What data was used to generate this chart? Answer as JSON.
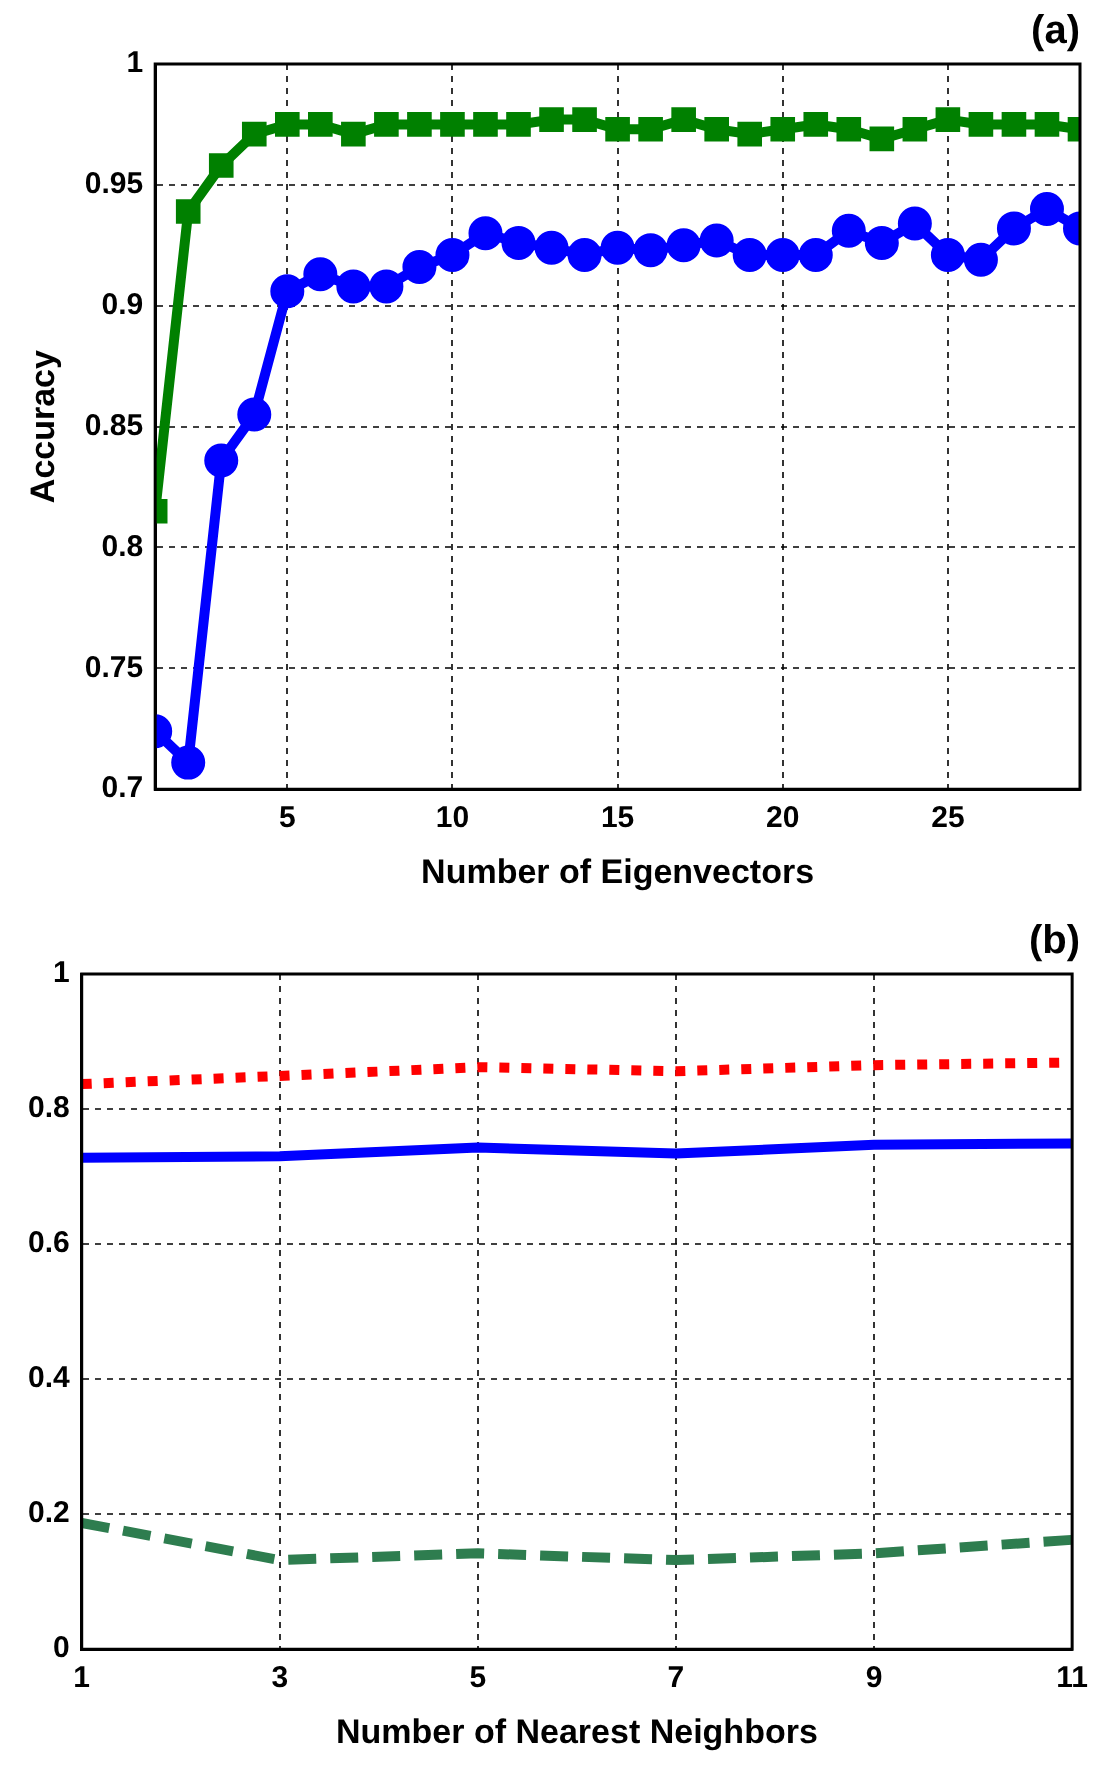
{
  "chart_data": [
    {
      "type": "line",
      "title": "(a)",
      "xlabel": "Number of Eigenvectors",
      "ylabel": "Accuracy",
      "x": [
        1,
        2,
        3,
        4,
        5,
        6,
        7,
        8,
        9,
        10,
        11,
        12,
        13,
        14,
        15,
        16,
        17,
        18,
        19,
        20,
        21,
        22,
        23,
        24,
        25,
        26,
        27,
        28,
        29
      ],
      "xlim": [
        1,
        29
      ],
      "xticks": [
        5,
        10,
        15,
        20,
        25
      ],
      "ylim": [
        0.7,
        1
      ],
      "yticks": [
        0.7,
        0.75,
        0.8,
        0.85,
        0.9,
        0.95,
        1
      ],
      "grid": true,
      "legend": false,
      "line_style": "solid",
      "series": [
        {
          "color": "#008000",
          "marker": "square",
          "values": [
            0.815,
            0.939,
            0.958,
            0.971,
            0.975,
            0.975,
            0.971,
            0.975,
            0.975,
            0.975,
            0.975,
            0.975,
            0.977,
            0.977,
            0.973,
            0.973,
            0.977,
            0.973,
            0.971,
            0.973,
            0.975,
            0.973,
            0.969,
            0.973,
            0.977,
            0.975,
            0.975,
            0.975,
            0.973
          ]
        },
        {
          "color": "#0000ff",
          "marker": "circle",
          "values": [
            0.724,
            0.711,
            0.836,
            0.855,
            0.906,
            0.913,
            0.908,
            0.908,
            0.916,
            0.921,
            0.93,
            0.926,
            0.924,
            0.921,
            0.924,
            0.923,
            0.925,
            0.927,
            0.921,
            0.921,
            0.921,
            0.931,
            0.926,
            0.934,
            0.921,
            0.919,
            0.932,
            0.94,
            0.932
          ]
        }
      ]
    },
    {
      "type": "line",
      "title": "(b)",
      "xlabel": "Number of Nearest Neighbors",
      "x": [
        1,
        3,
        5,
        7,
        9,
        11
      ],
      "xlim": [
        1,
        11
      ],
      "xticks": [
        1,
        3,
        5,
        7,
        9,
        11
      ],
      "ylim": [
        0,
        1
      ],
      "yticks": [
        0,
        0.2,
        0.4,
        0.6,
        0.8,
        1
      ],
      "grid": true,
      "legend": false,
      "marker": "none",
      "series": [
        {
          "color": "#ff0000",
          "line_style": "dotted",
          "values": [
            0.837,
            0.849,
            0.862,
            0.856,
            0.865,
            0.869
          ]
        },
        {
          "color": "#0000ff",
          "line_style": "solid",
          "values": [
            0.728,
            0.73,
            0.743,
            0.734,
            0.747,
            0.749
          ]
        },
        {
          "color": "#2e7d4f",
          "line_style": "dashed",
          "values": [
            0.187,
            0.132,
            0.142,
            0.132,
            0.142,
            0.162
          ]
        }
      ]
    }
  ]
}
